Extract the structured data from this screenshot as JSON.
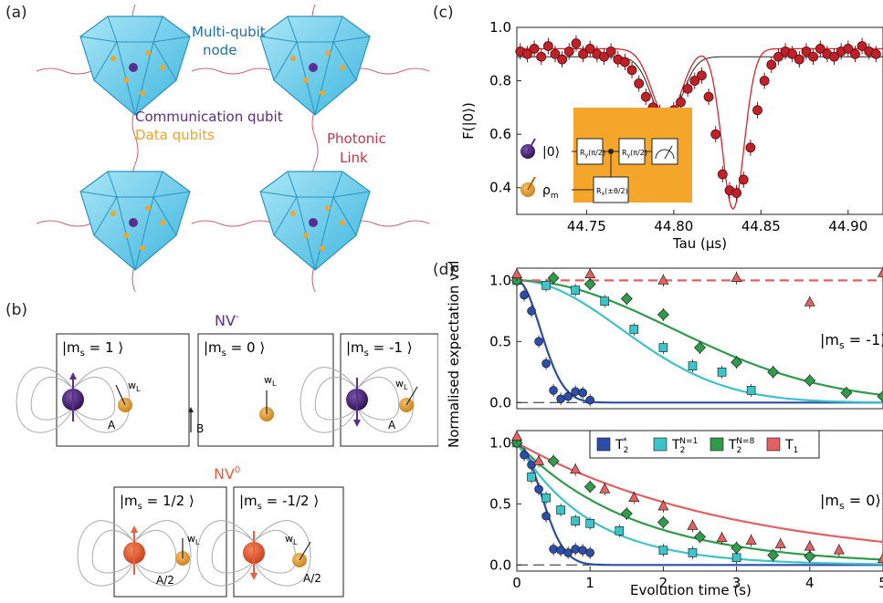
{
  "panels": {
    "a": {
      "label": "(a)",
      "node_label_1": "Multi-qubit",
      "node_label_2": "node",
      "comm_label": "Communication qubit",
      "data_label": "Data qubits",
      "link_label_1": "Photonic",
      "link_label_2": "Link"
    },
    "b": {
      "label": "(b)",
      "nv_minus": "NV",
      "nv_minus_sup": "-",
      "nv_zero": "NV",
      "nv_zero_sup": "0",
      "states": [
        {
          "ms": "1"
        },
        {
          "ms": "0"
        },
        {
          "ms": "-1"
        },
        {
          "ms": "1/2"
        },
        {
          "ms": "-1/2"
        }
      ],
      "wl": "w",
      "wl_sub": "L",
      "A": "A",
      "A2": "A/2",
      "B": "B"
    },
    "c": {
      "label": "(c)",
      "ylabel": "F(|0⟩)",
      "xlabel": "Tau (μs)",
      "circuit": {
        "q0": "|0⟩",
        "q1": "ρ",
        "q1_sub": "m"
      }
    },
    "d": {
      "label": "(d)",
      "ylabel": "Normalised expectation value",
      "xlabel": "Evolution time (s)",
      "top_state": "|m",
      "top_state_sub": "s",
      "top_state_val": " = -1⟩",
      "bottom_state": "|m",
      "bottom_state_sub": "s",
      "bottom_state_val": " = 0⟩",
      "legend": [
        {
          "name": "T2*",
          "color": "#2c4ea8"
        },
        {
          "name": "T2N=1",
          "color": "#3cc4c8"
        },
        {
          "name": "T2N=8",
          "color": "#2f9b4b"
        },
        {
          "name": "T1",
          "color": "#e36163"
        }
      ]
    }
  },
  "chart_data": [
    {
      "type": "scatter",
      "id": "c",
      "xlabel": "Tau (μs)",
      "ylabel": "F(|0⟩)",
      "xlim": [
        44.71,
        44.92
      ],
      "ylim": [
        0.3,
        1.0
      ],
      "xticks": [
        44.75,
        44.8,
        44.85,
        44.9
      ],
      "yticks": [
        0.4,
        0.6,
        0.8,
        1.0
      ],
      "series": [
        {
          "points": [
            [
              44.712,
              0.91
            ],
            [
              44.716,
              0.9
            ],
            [
              44.72,
              0.92
            ],
            [
              44.724,
              0.89
            ],
            [
              44.728,
              0.93
            ],
            [
              44.732,
              0.9
            ],
            [
              44.736,
              0.88
            ],
            [
              44.74,
              0.91
            ],
            [
              44.744,
              0.94
            ],
            [
              44.748,
              0.9
            ],
            [
              44.752,
              0.92
            ],
            [
              44.756,
              0.9
            ],
            [
              44.76,
              0.89
            ],
            [
              44.764,
              0.91
            ],
            [
              44.768,
              0.88
            ],
            [
              44.772,
              0.87
            ],
            [
              44.776,
              0.84
            ],
            [
              44.78,
              0.79
            ],
            [
              44.784,
              0.74
            ],
            [
              44.788,
              0.7
            ],
            [
              44.792,
              0.68
            ],
            [
              44.796,
              0.67
            ],
            [
              44.8,
              0.69
            ],
            [
              44.804,
              0.72
            ],
            [
              44.808,
              0.77
            ],
            [
              44.812,
              0.8
            ],
            [
              44.816,
              0.82
            ],
            [
              44.82,
              0.74
            ],
            [
              44.824,
              0.6
            ],
            [
              44.828,
              0.45
            ],
            [
              44.832,
              0.39
            ],
            [
              44.836,
              0.38
            ],
            [
              44.84,
              0.43
            ],
            [
              44.844,
              0.55
            ],
            [
              44.848,
              0.69
            ],
            [
              44.852,
              0.8
            ],
            [
              44.856,
              0.86
            ],
            [
              44.86,
              0.89
            ],
            [
              44.864,
              0.91
            ],
            [
              44.868,
              0.9
            ],
            [
              44.872,
              0.88
            ],
            [
              44.876,
              0.91
            ],
            [
              44.88,
              0.89
            ],
            [
              44.884,
              0.92
            ],
            [
              44.888,
              0.9
            ],
            [
              44.892,
              0.89
            ],
            [
              44.896,
              0.91
            ],
            [
              44.9,
              0.92
            ],
            [
              44.904,
              0.9
            ],
            [
              44.908,
              0.93
            ],
            [
              44.912,
              0.91
            ],
            [
              44.916,
              0.9
            ]
          ]
        }
      ]
    },
    {
      "type": "scatter",
      "id": "d-top",
      "xlim": [
        0,
        5
      ],
      "ylim": [
        -0.05,
        1.1
      ],
      "yticks": [
        0.0,
        0.5,
        1.0
      ],
      "series": [
        {
          "name": "T2*",
          "points": [
            [
              0,
              1.0
            ],
            [
              0.1,
              0.88
            ],
            [
              0.2,
              0.75
            ],
            [
              0.3,
              0.5
            ],
            [
              0.4,
              0.32
            ],
            [
              0.5,
              0.1
            ],
            [
              0.6,
              0.03
            ],
            [
              0.7,
              0.05
            ],
            [
              0.8,
              0.09
            ],
            [
              0.9,
              0.08
            ],
            [
              1.0,
              0.02
            ]
          ]
        },
        {
          "name": "T2N=1",
          "points": [
            [
              0,
              1.0
            ],
            [
              0.4,
              0.96
            ],
            [
              0.8,
              0.92
            ],
            [
              1.2,
              0.83
            ],
            [
              1.6,
              0.6
            ],
            [
              2.0,
              0.45
            ],
            [
              2.4,
              0.3
            ],
            [
              2.8,
              0.25
            ],
            [
              3.2,
              0.1
            ]
          ]
        },
        {
          "name": "T2N=8",
          "points": [
            [
              0,
              1.0
            ],
            [
              0.5,
              1.02
            ],
            [
              1.0,
              0.97
            ],
            [
              1.5,
              0.85
            ],
            [
              2.0,
              0.72
            ],
            [
              2.5,
              0.45
            ],
            [
              3.0,
              0.33
            ],
            [
              3.5,
              0.25
            ],
            [
              4.0,
              0.18
            ],
            [
              4.5,
              0.08
            ],
            [
              5.0,
              0.05
            ]
          ]
        },
        {
          "name": "T1",
          "points": [
            [
              0,
              1.05
            ],
            [
              1.0,
              1.05
            ],
            [
              2.0,
              1.0
            ],
            [
              3.0,
              1.02
            ],
            [
              4.0,
              0.82
            ],
            [
              5.0,
              1.06
            ]
          ]
        }
      ]
    },
    {
      "type": "scatter",
      "id": "d-bottom",
      "xlim": [
        0,
        5
      ],
      "ylim": [
        -0.05,
        1.1
      ],
      "xticks": [
        0,
        1,
        2,
        3,
        4,
        5
      ],
      "yticks": [
        0.0,
        0.5,
        1.0
      ],
      "series": [
        {
          "name": "T2*",
          "points": [
            [
              0,
              1.0
            ],
            [
              0.1,
              0.9
            ],
            [
              0.2,
              0.82
            ],
            [
              0.3,
              0.62
            ],
            [
              0.4,
              0.4
            ],
            [
              0.5,
              0.13
            ],
            [
              0.6,
              0.12
            ],
            [
              0.7,
              0.1
            ],
            [
              0.8,
              0.13
            ],
            [
              0.9,
              0.12
            ],
            [
              1.0,
              0.1
            ]
          ]
        },
        {
          "name": "T2N=1",
          "points": [
            [
              0,
              1.0
            ],
            [
              0.2,
              0.72
            ],
            [
              0.4,
              0.55
            ],
            [
              0.6,
              0.45
            ],
            [
              0.8,
              0.36
            ],
            [
              1.0,
              0.34
            ],
            [
              1.4,
              0.28
            ],
            [
              2.0,
              0.12
            ],
            [
              2.4,
              0.1
            ],
            [
              3.0,
              0.06
            ]
          ]
        },
        {
          "name": "T2N=8",
          "points": [
            [
              0,
              1.0
            ],
            [
              0.5,
              0.85
            ],
            [
              1.0,
              0.64
            ],
            [
              1.5,
              0.42
            ],
            [
              2.0,
              0.35
            ],
            [
              2.5,
              0.23
            ],
            [
              3.0,
              0.14
            ],
            [
              3.5,
              0.08
            ],
            [
              4.0,
              0.07
            ]
          ]
        },
        {
          "name": "T1",
          "points": [
            [
              0,
              1.05
            ],
            [
              0.3,
              0.85
            ],
            [
              0.8,
              0.78
            ],
            [
              1.2,
              0.62
            ],
            [
              1.6,
              0.55
            ],
            [
              2.0,
              0.48
            ],
            [
              2.4,
              0.32
            ],
            [
              2.8,
              0.22
            ],
            [
              3.2,
              0.2
            ],
            [
              3.6,
              0.17
            ],
            [
              4.0,
              0.15
            ],
            [
              4.4,
              0.12
            ],
            [
              5.0,
              0.05
            ]
          ]
        }
      ]
    }
  ]
}
